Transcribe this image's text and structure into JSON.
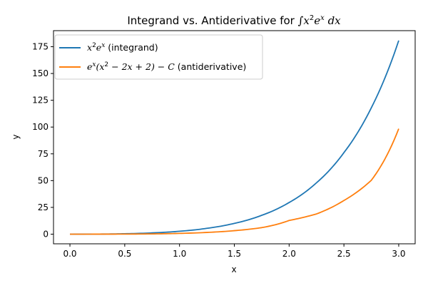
{
  "chart_data": {
    "type": "line",
    "title": {
      "prefix": "Integrand vs. Antiderivative for ",
      "integral_sign": "∫",
      "body": "x",
      "body_sup": "2",
      "body2": "e",
      "body2_sup": "x",
      "suffix": " dx"
    },
    "xlabel": "x",
    "ylabel": "y",
    "xlim": [
      -0.15,
      3.15
    ],
    "ylim": [
      -9,
      190
    ],
    "xticks": [
      0.0,
      0.5,
      1.0,
      1.5,
      2.0,
      2.5,
      3.0
    ],
    "xtick_labels": [
      "0.0",
      "0.5",
      "1.0",
      "1.5",
      "2.0",
      "2.5",
      "3.0"
    ],
    "yticks": [
      0,
      25,
      50,
      75,
      100,
      125,
      150,
      175
    ],
    "ytick_labels": [
      "0",
      "25",
      "50",
      "75",
      "100",
      "125",
      "150",
      "175"
    ],
    "grid": false,
    "legend_position": "upper-left",
    "x": [
      0.0,
      0.25,
      0.5,
      0.75,
      1.0,
      1.25,
      1.5,
      1.75,
      2.0,
      2.25,
      2.5,
      2.75,
      3.0
    ],
    "series": [
      {
        "name": "x²eˣ (integrand)",
        "legend_math": "x",
        "legend_sup": "2",
        "legend_math2": "e",
        "legend_sup2": "x",
        "legend_tail": " (integrand)",
        "color": "#1f77b4",
        "values": [
          0,
          0.08,
          0.41,
          1.19,
          2.72,
          5.46,
          10.08,
          17.6,
          29.56,
          48.0,
          76.14,
          118.0,
          180.77
        ]
      },
      {
        "name": "eˣ(x² − 2x + 2) − C (antiderivative)",
        "legend_math": "e",
        "legend_sup": "x",
        "legend_mid": "(x",
        "legend_sup2": "2",
        "legend_mid2": " − 2x + 2) − C",
        "legend_tail": " (antiderivative)",
        "color": "#ff7f0e",
        "values": [
          0,
          0.01,
          0.07,
          0.26,
          0.72,
          1.62,
          3.27,
          6.11,
          12.78,
          18.9,
          31.43,
          50.3,
          98.43
        ]
      }
    ]
  }
}
